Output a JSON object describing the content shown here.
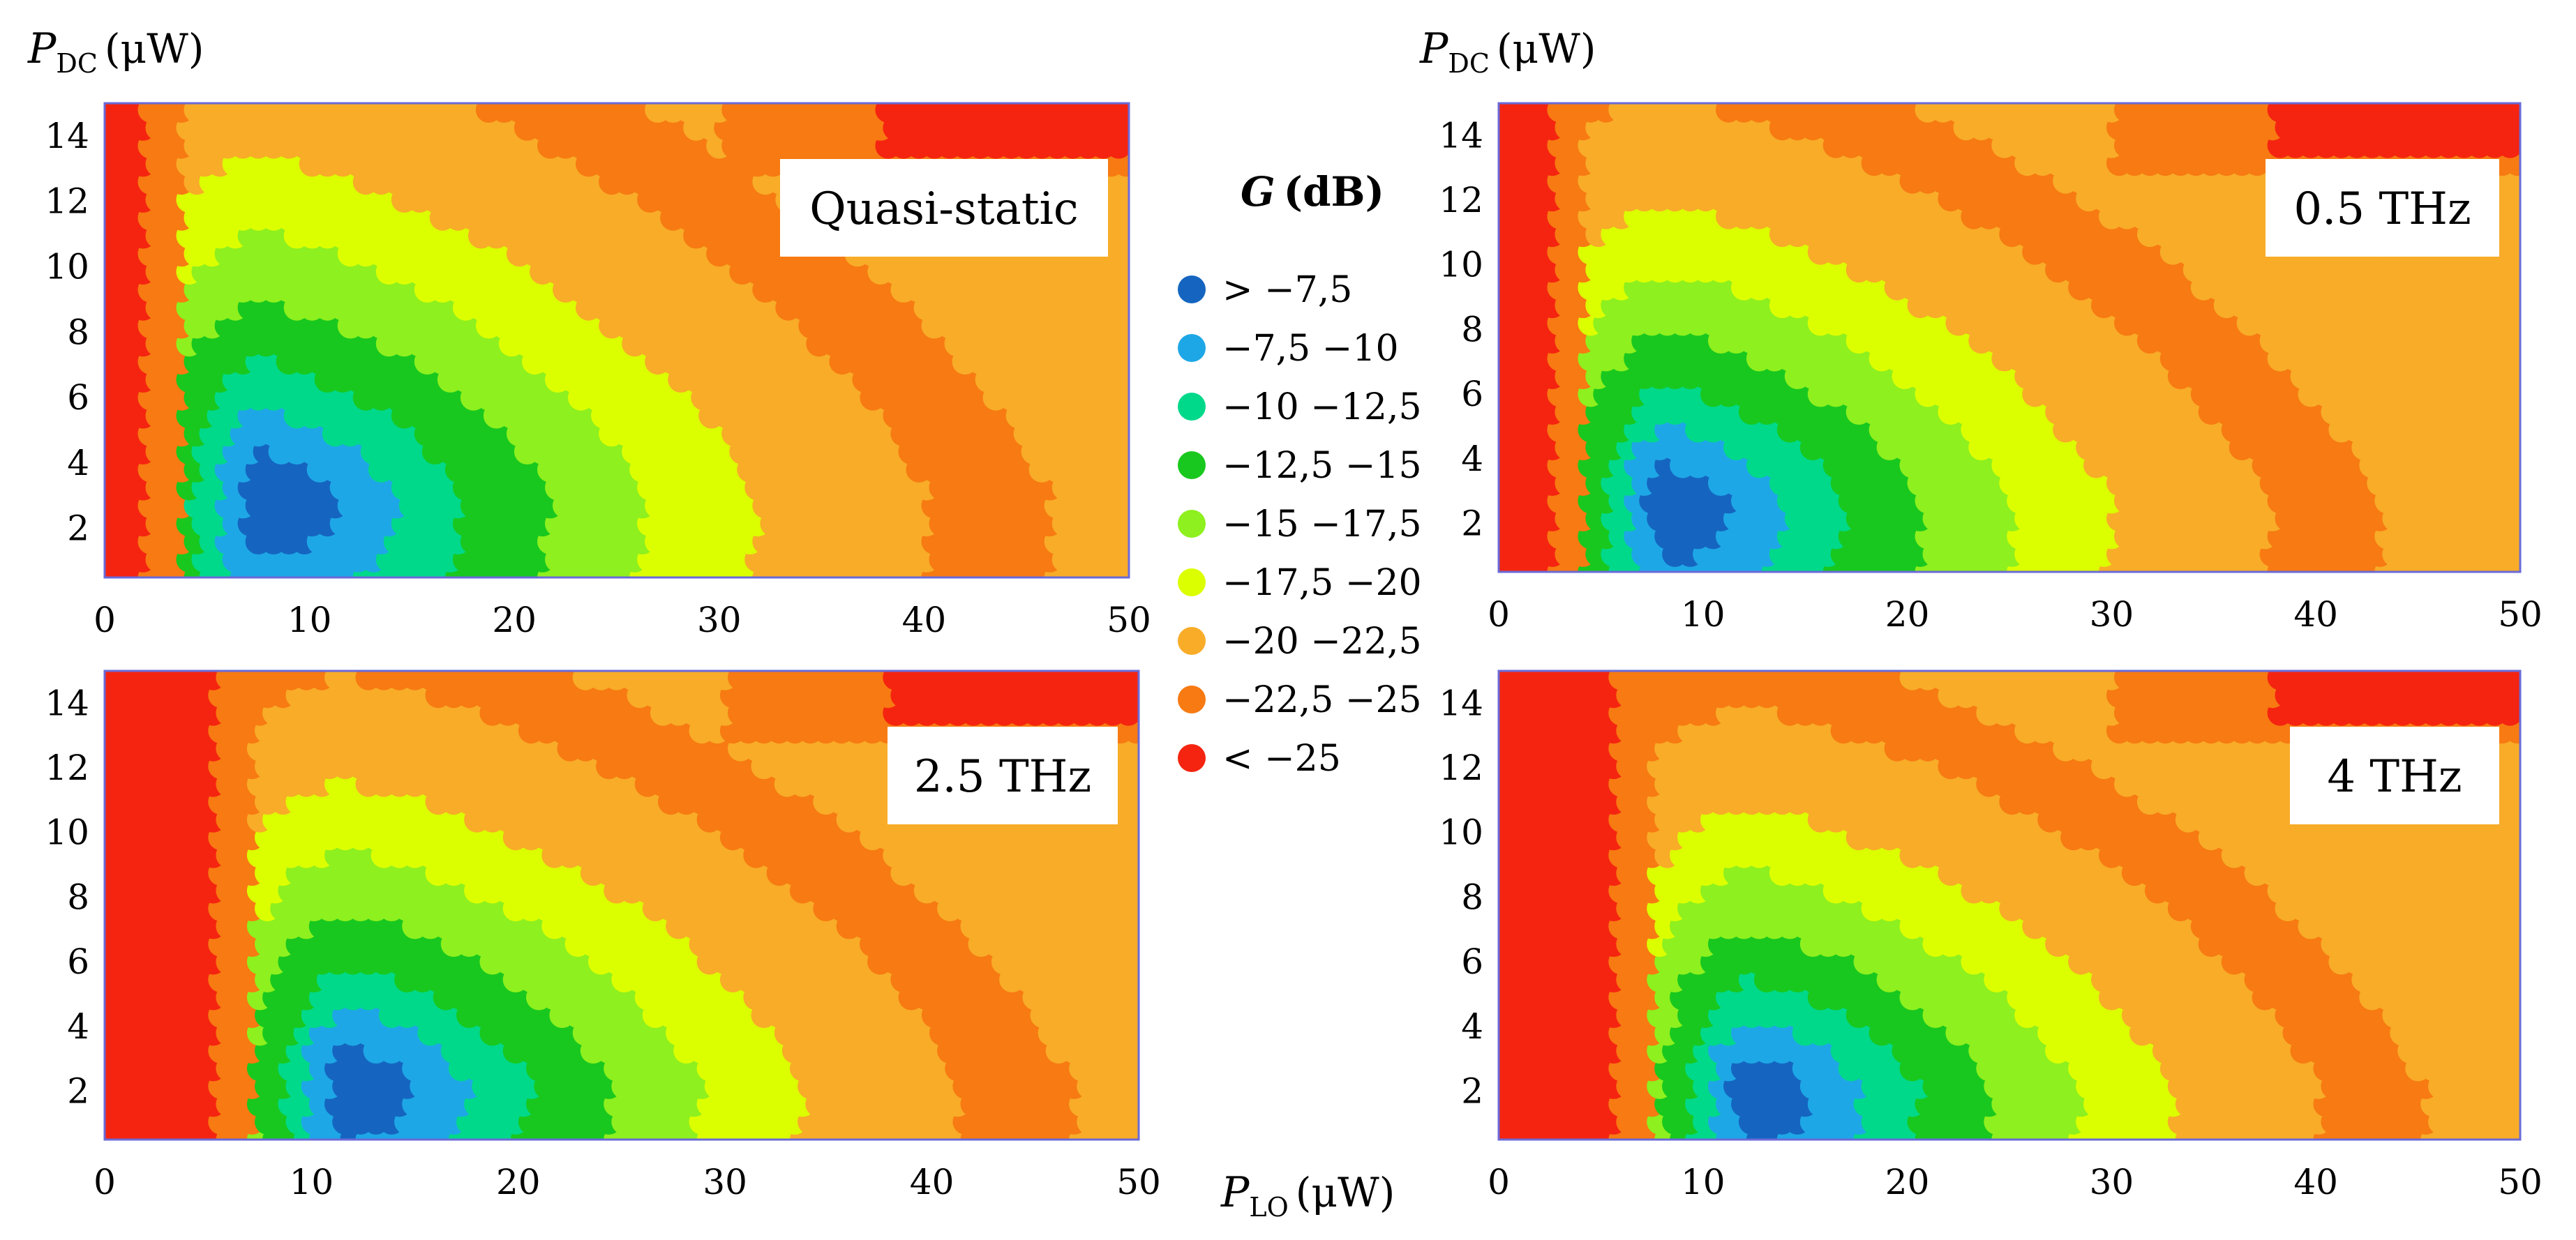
{
  "figure": {
    "y_var": "P",
    "y_sub": "DC",
    "y_unit": "(μW)",
    "x_var": "P",
    "x_sub": "LO",
    "x_unit": "(μW)"
  },
  "legend": {
    "title_var": "G",
    "title_unit": "(dB)",
    "items": [
      {
        "label": "> −7,5",
        "color": "#1565c0"
      },
      {
        "label": "−7,5  −10",
        "color": "#1ea7e6"
      },
      {
        "label": "−10   −12,5",
        "color": "#00d98a"
      },
      {
        "label": "−12,5  −15",
        "color": "#18c81e"
      },
      {
        "label": "−15   −17,5",
        "color": "#8ef01e"
      },
      {
        "label": "−17,5  −20",
        "color": "#dcff00"
      },
      {
        "label": "−20   −22,5",
        "color": "#f8ac28"
      },
      {
        "label": "−22,5  −25",
        "color": "#f77a12"
      },
      {
        "label": "< −25",
        "color": "#f52410"
      }
    ]
  },
  "chart_data": [
    {
      "type": "heatmap",
      "title": "Quasi-static",
      "xlabel": "P_LO (μW)",
      "ylabel": "P_DC (μW)",
      "xlim": [
        0,
        50
      ],
      "ylim": [
        0.5,
        15
      ],
      "x_ticks": [
        "0",
        "10",
        "20",
        "30",
        "40",
        "50"
      ],
      "y_ticks": [
        "2",
        "4",
        "6",
        "8",
        "10",
        "12",
        "14"
      ],
      "peak": {
        "x": 8,
        "y": 3
      },
      "min_x": 2.2,
      "slope": 1.15,
      "boundary_width": 1.6,
      "scale": 1.0
    },
    {
      "type": "heatmap",
      "title": "0.5 THz",
      "xlabel": "P_LO (μW)",
      "ylabel": "P_DC (μW)",
      "xlim": [
        0,
        50
      ],
      "ylim": [
        0.5,
        15
      ],
      "x_ticks": [
        "0",
        "10",
        "20",
        "30",
        "40",
        "50"
      ],
      "y_ticks": [
        "2",
        "4",
        "6",
        "8",
        "10",
        "12",
        "14"
      ],
      "peak": {
        "x": 8.5,
        "y": 2.6
      },
      "min_x": 3.0,
      "slope": 1.1,
      "boundary_width": 1.2,
      "scale": 0.9
    },
    {
      "type": "heatmap",
      "title": "2.5 THz",
      "xlabel": "P_LO (μW)",
      "ylabel": "P_DC (μW)",
      "xlim": [
        0,
        50
      ],
      "ylim": [
        0.5,
        15
      ],
      "x_ticks": [
        "0",
        "10",
        "20",
        "30",
        "40",
        "50"
      ],
      "y_ticks": [
        "2",
        "4",
        "6",
        "8",
        "10",
        "12",
        "14"
      ],
      "peak": {
        "x": 12,
        "y": 2.2
      },
      "min_x": 5.5,
      "slope": 1.05,
      "boundary_width": 1.8,
      "scale": 0.9
    },
    {
      "type": "heatmap",
      "title": "4 THz",
      "xlabel": "P_LO (μW)",
      "ylabel": "P_DC (μW)",
      "xlim": [
        0,
        50
      ],
      "ylim": [
        0.5,
        15
      ],
      "x_ticks": [
        "0",
        "10",
        "20",
        "30",
        "40",
        "50"
      ],
      "y_ticks": [
        "2",
        "4",
        "6",
        "8",
        "10",
        "12",
        "14"
      ],
      "peak": {
        "x": 12.5,
        "y": 2.0
      },
      "min_x": 6.0,
      "slope": 1.05,
      "boundary_width": 1.8,
      "scale": 0.85
    }
  ]
}
